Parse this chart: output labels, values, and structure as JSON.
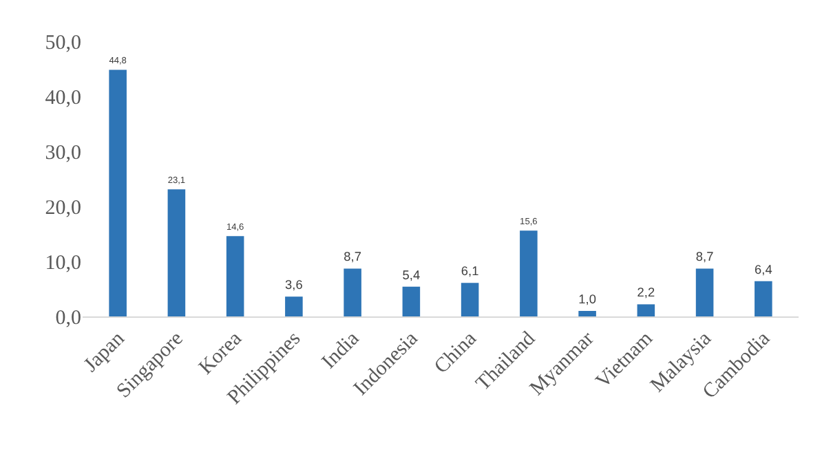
{
  "chart_data": {
    "type": "bar",
    "categories": [
      "Japan",
      "Singapore",
      "Korea",
      "Philippines",
      "India",
      "Indonesia",
      "China",
      "Thailand",
      "Myanmar",
      "Vietnam",
      "Malaysia",
      "Cambodia"
    ],
    "values": [
      44.8,
      23.1,
      14.6,
      3.6,
      8.7,
      5.4,
      6.1,
      15.6,
      1.0,
      2.2,
      8.7,
      6.4
    ],
    "value_labels": [
      "44,8",
      "23,1",
      "14,6",
      "3,6",
      "8,7",
      "5,4",
      "6,1",
      "15,6",
      "1,0",
      "2,2",
      "8,7",
      "6,4"
    ],
    "color": "#2e75b6",
    "ylim": [
      0,
      50
    ],
    "yticks": [
      {
        "value": 0,
        "label": "0,0"
      },
      {
        "value": 10,
        "label": "10,0"
      },
      {
        "value": 20,
        "label": "20,0"
      },
      {
        "value": 30,
        "label": "30,0"
      },
      {
        "value": 40,
        "label": "40,0"
      },
      {
        "value": 50,
        "label": "50,0"
      }
    ],
    "grid": false,
    "legend": false
  }
}
